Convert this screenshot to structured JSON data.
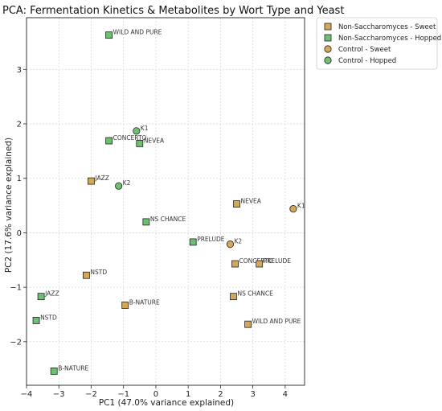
{
  "chart_data": {
    "type": "scatter",
    "title": "PCA: Fermentation Kinetics & Metabolites by Wort Type and Yeast",
    "xlabel": "PC1 (47.0% variance explained)",
    "ylabel": "PC2 (17.6% variance explained)",
    "xlim": [
      -4.0,
      4.6
    ],
    "ylim": [
      -2.8,
      3.95
    ],
    "xticks": [
      -4,
      -3,
      -2,
      -1,
      0,
      1,
      2,
      3,
      4
    ],
    "yticks": [
      -2,
      -1,
      0,
      1,
      2,
      3
    ],
    "grid": true,
    "legend_position": "outside-top-right",
    "series": [
      {
        "name": "Non-Saccharomyces - Sweet",
        "marker": "square",
        "color": "#d4a85a",
        "points": [
          {
            "label": "JAZZ",
            "x": -2.0,
            "y": 0.95
          },
          {
            "label": "NEVEA",
            "x": 2.5,
            "y": 0.53
          },
          {
            "label": "NSTD",
            "x": -2.15,
            "y": -0.78
          },
          {
            "label": "CONCERTO",
            "x": 2.45,
            "y": -0.57
          },
          {
            "label": "PRELUDE",
            "x": 3.2,
            "y": -0.57
          },
          {
            "label": "NS CHANCE",
            "x": 2.4,
            "y": -1.17
          },
          {
            "label": "B-NATURE",
            "x": -0.95,
            "y": -1.33
          },
          {
            "label": "WILD AND PURE",
            "x": 2.85,
            "y": -1.68
          }
        ]
      },
      {
        "name": "Non-Saccharomyces - Hopped",
        "marker": "square",
        "color": "#6fbf73",
        "points": [
          {
            "label": "WILD AND PURE",
            "x": -1.45,
            "y": 3.63
          },
          {
            "label": "CONCERTO",
            "x": -1.45,
            "y": 1.69
          },
          {
            "label": "NEVEA",
            "x": -0.5,
            "y": 1.64
          },
          {
            "label": "NS CHANCE",
            "x": -0.3,
            "y": 0.2
          },
          {
            "label": "PRELUDE",
            "x": 1.15,
            "y": -0.17
          },
          {
            "label": "JAZZ",
            "x": -3.55,
            "y": -1.17
          },
          {
            "label": "NSTD",
            "x": -3.7,
            "y": -1.61
          },
          {
            "label": "B-NATURE",
            "x": -3.15,
            "y": -2.54
          }
        ]
      },
      {
        "name": "Control - Sweet",
        "marker": "circle",
        "color": "#d4a85a",
        "points": [
          {
            "label": "K1",
            "x": 4.25,
            "y": 0.44
          },
          {
            "label": "K2",
            "x": 2.3,
            "y": -0.21
          }
        ]
      },
      {
        "name": "Control - Hopped",
        "marker": "circle",
        "color": "#6fbf73",
        "points": [
          {
            "label": "K1",
            "x": -0.6,
            "y": 1.87
          },
          {
            "label": "K2",
            "x": -1.15,
            "y": 0.86
          }
        ]
      }
    ]
  }
}
